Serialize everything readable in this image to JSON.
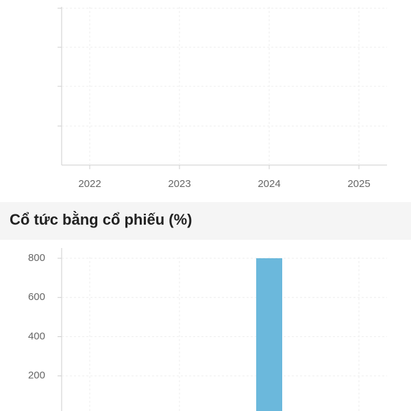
{
  "chart_data": [
    {
      "type": "bar",
      "categories": [
        "2022",
        "2023",
        "2024",
        "2025"
      ],
      "values": [
        null,
        null,
        null,
        null
      ],
      "color": "#6bb8dc",
      "grid": true
    },
    {
      "type": "bar",
      "title": "Cổ tức bằng cổ phiếu (%)",
      "categories": [
        null,
        null,
        null,
        null
      ],
      "values": [
        null,
        null,
        800,
        null
      ],
      "color": "#6bb8dc",
      "ylim": [
        0,
        800
      ],
      "yticks": [
        200,
        400,
        600,
        800
      ],
      "grid": true
    }
  ]
}
